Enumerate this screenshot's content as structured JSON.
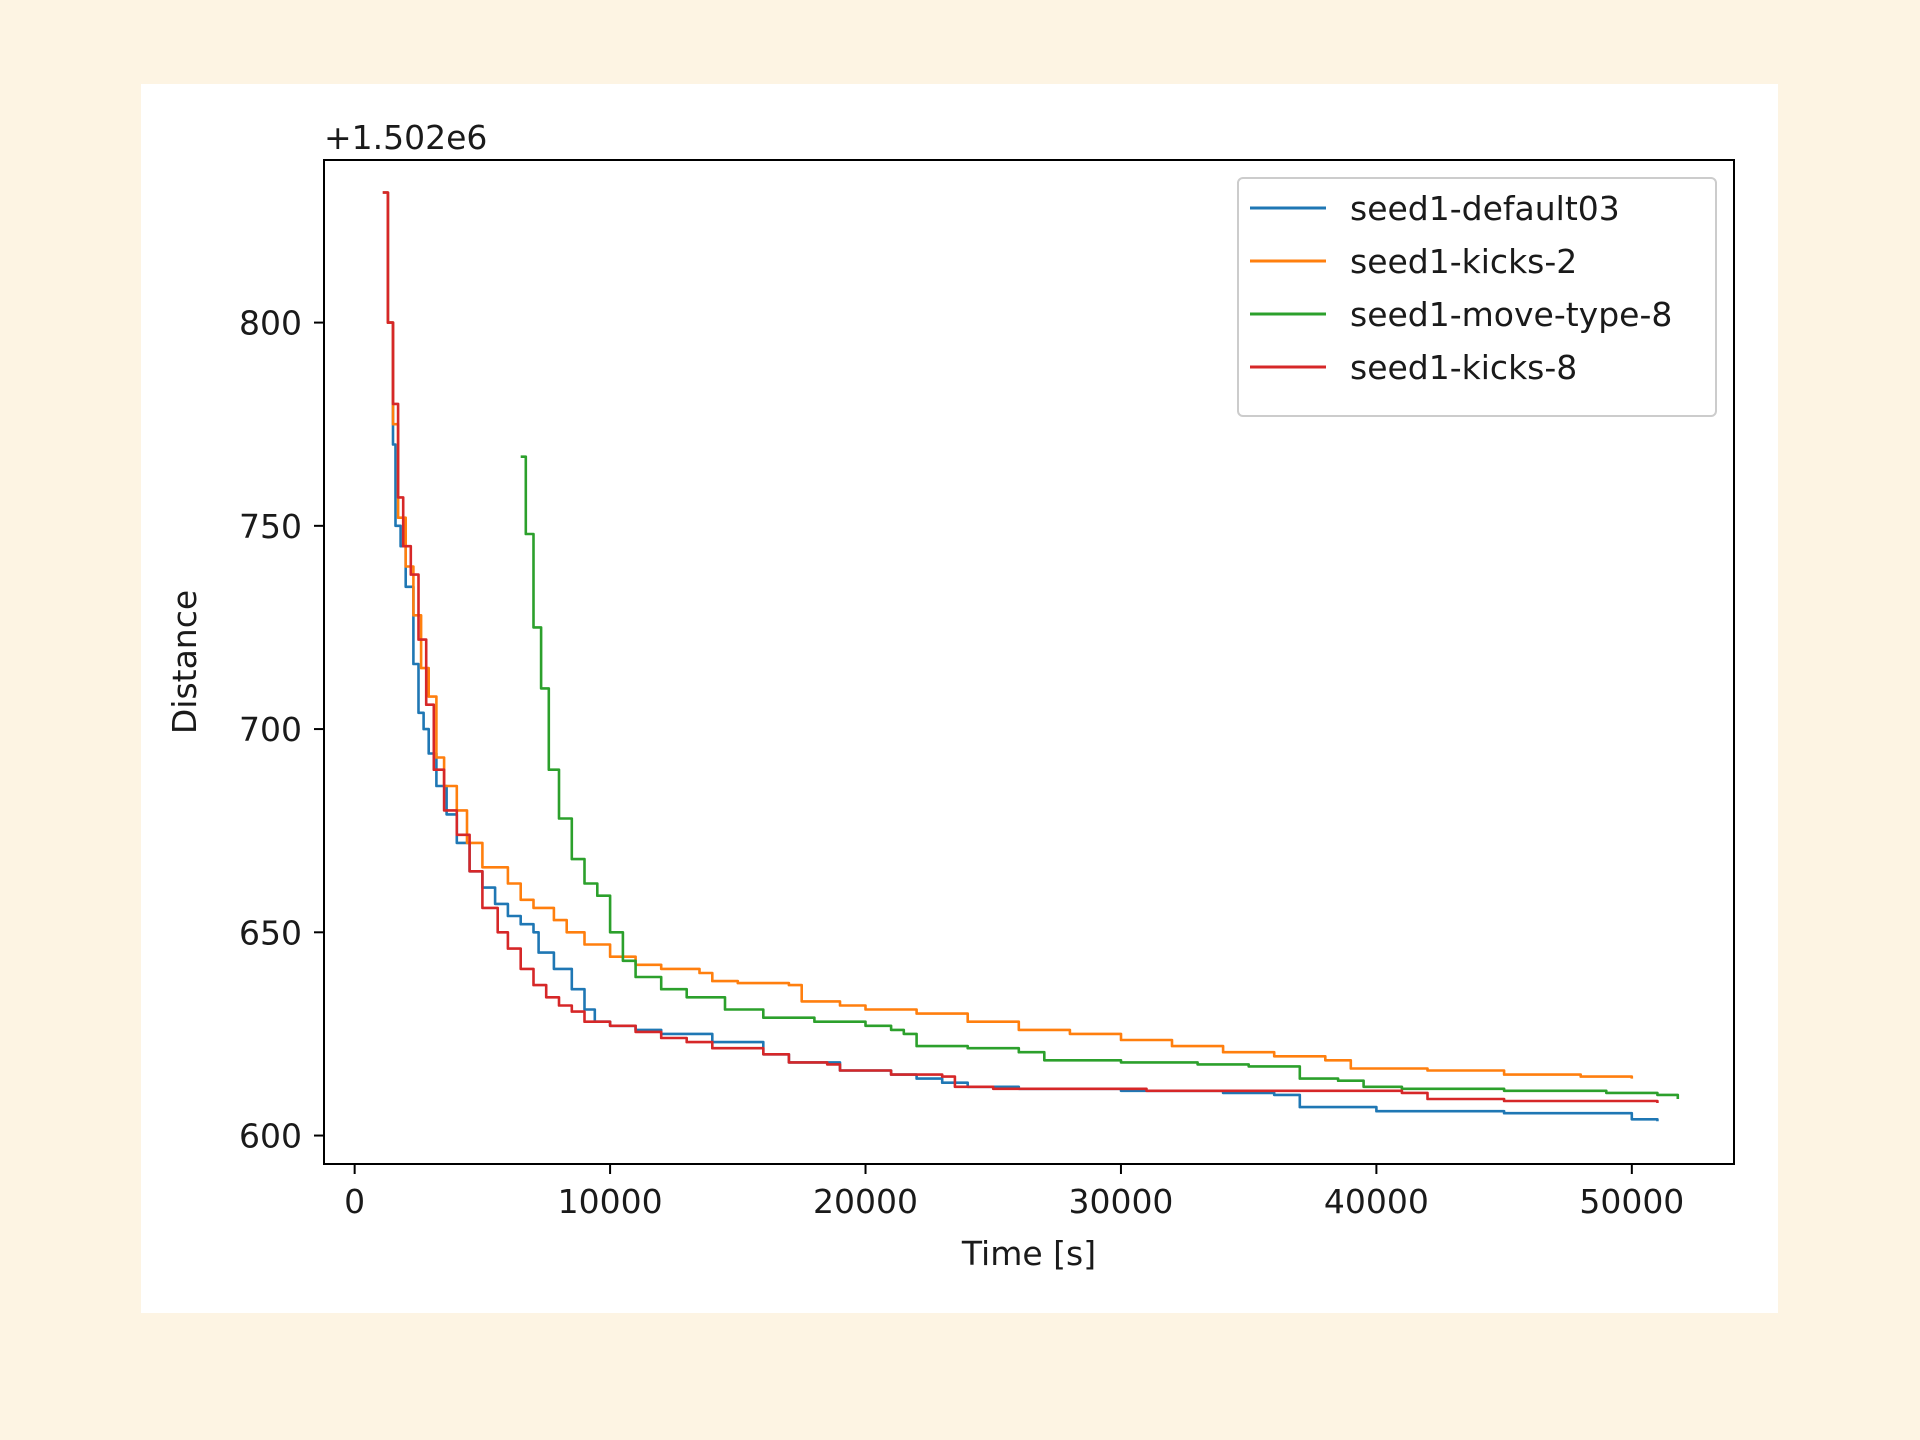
{
  "chart_data": {
    "type": "line",
    "offset_label": "+1.502e6",
    "xlabel": "Time [s]",
    "ylabel": "Distance",
    "xlim": [
      -1200,
      54000
    ],
    "ylim": [
      593,
      840
    ],
    "xticks": [
      0,
      10000,
      20000,
      30000,
      40000,
      50000
    ],
    "xtick_labels": [
      "0",
      "10000",
      "20000",
      "30000",
      "40000",
      "50000"
    ],
    "yticks": [
      600,
      650,
      700,
      750,
      800
    ],
    "ytick_labels": [
      "600",
      "650",
      "700",
      "750",
      "800"
    ],
    "grid": false,
    "legend_position": "top-right",
    "series": [
      {
        "name": "seed1-default03",
        "color": "#1f77b4",
        "points": [
          [
            1100,
            832
          ],
          [
            1300,
            800
          ],
          [
            1500,
            770
          ],
          [
            1600,
            750
          ],
          [
            1800,
            745
          ],
          [
            2000,
            735
          ],
          [
            2300,
            716
          ],
          [
            2500,
            704
          ],
          [
            2700,
            700
          ],
          [
            2900,
            694
          ],
          [
            3200,
            686
          ],
          [
            3600,
            679
          ],
          [
            4000,
            672
          ],
          [
            4500,
            665
          ],
          [
            5000,
            661
          ],
          [
            5500,
            657
          ],
          [
            6000,
            654
          ],
          [
            6500,
            652
          ],
          [
            7000,
            650
          ],
          [
            7200,
            645
          ],
          [
            7800,
            641
          ],
          [
            8500,
            636
          ],
          [
            9000,
            631
          ],
          [
            9400,
            628
          ],
          [
            10000,
            627
          ],
          [
            11000,
            626
          ],
          [
            12000,
            625
          ],
          [
            14000,
            623
          ],
          [
            16000,
            620
          ],
          [
            17000,
            618
          ],
          [
            19000,
            616
          ],
          [
            21000,
            615
          ],
          [
            22000,
            614
          ],
          [
            23000,
            613
          ],
          [
            24000,
            612
          ],
          [
            26000,
            611.5
          ],
          [
            30000,
            611
          ],
          [
            34000,
            610.5
          ],
          [
            36000,
            610
          ],
          [
            37000,
            607
          ],
          [
            40000,
            606
          ],
          [
            45000,
            605.5
          ],
          [
            49000,
            605.5
          ],
          [
            50000,
            604
          ],
          [
            51000,
            603.5
          ]
        ]
      },
      {
        "name": "seed1-kicks-2",
        "color": "#ff7f0e",
        "points": [
          [
            1100,
            832
          ],
          [
            1300,
            800
          ],
          [
            1500,
            775
          ],
          [
            1700,
            752
          ],
          [
            2000,
            740
          ],
          [
            2300,
            728
          ],
          [
            2600,
            715
          ],
          [
            2900,
            708
          ],
          [
            3200,
            693
          ],
          [
            3500,
            686
          ],
          [
            4000,
            680
          ],
          [
            4400,
            672
          ],
          [
            5000,
            666
          ],
          [
            6000,
            662
          ],
          [
            6500,
            658
          ],
          [
            7000,
            656
          ],
          [
            7800,
            653
          ],
          [
            8300,
            650
          ],
          [
            9000,
            647
          ],
          [
            10000,
            644
          ],
          [
            11000,
            642
          ],
          [
            12000,
            641
          ],
          [
            13500,
            640
          ],
          [
            14000,
            638
          ],
          [
            15000,
            637.5
          ],
          [
            17000,
            637
          ],
          [
            17500,
            633
          ],
          [
            19000,
            632
          ],
          [
            20000,
            631
          ],
          [
            22000,
            630
          ],
          [
            24000,
            628
          ],
          [
            26000,
            626
          ],
          [
            28000,
            625
          ],
          [
            30000,
            623.5
          ],
          [
            32000,
            622
          ],
          [
            34000,
            620.5
          ],
          [
            36000,
            619.5
          ],
          [
            38000,
            618.5
          ],
          [
            39000,
            616.5
          ],
          [
            42000,
            616
          ],
          [
            45000,
            615
          ],
          [
            48000,
            614.5
          ],
          [
            50000,
            614
          ]
        ]
      },
      {
        "name": "seed1-move-type-8",
        "color": "#2ca02c",
        "points": [
          [
            6500,
            767
          ],
          [
            6700,
            748
          ],
          [
            7000,
            725
          ],
          [
            7300,
            710
          ],
          [
            7600,
            690
          ],
          [
            8000,
            678
          ],
          [
            8500,
            668
          ],
          [
            9000,
            662
          ],
          [
            9500,
            659
          ],
          [
            10000,
            650
          ],
          [
            10500,
            643
          ],
          [
            11000,
            639
          ],
          [
            12000,
            636
          ],
          [
            13000,
            634
          ],
          [
            14500,
            631
          ],
          [
            16000,
            629
          ],
          [
            18000,
            628
          ],
          [
            20000,
            627
          ],
          [
            21000,
            626
          ],
          [
            21500,
            625
          ],
          [
            22000,
            622
          ],
          [
            24000,
            621.5
          ],
          [
            26000,
            620.5
          ],
          [
            27000,
            618.5
          ],
          [
            30000,
            618
          ],
          [
            33000,
            617.5
          ],
          [
            35000,
            617
          ],
          [
            37000,
            614
          ],
          [
            38500,
            613.5
          ],
          [
            39500,
            612
          ],
          [
            41000,
            611.5
          ],
          [
            45000,
            611
          ],
          [
            49000,
            610.5
          ],
          [
            51000,
            610
          ],
          [
            51800,
            609
          ]
        ]
      },
      {
        "name": "seed1-kicks-8",
        "color": "#d62728",
        "points": [
          [
            1100,
            832
          ],
          [
            1300,
            800
          ],
          [
            1500,
            780
          ],
          [
            1700,
            757
          ],
          [
            1900,
            745
          ],
          [
            2200,
            738
          ],
          [
            2500,
            722
          ],
          [
            2800,
            706
          ],
          [
            3100,
            690
          ],
          [
            3500,
            680
          ],
          [
            4000,
            674
          ],
          [
            4500,
            665
          ],
          [
            5000,
            656
          ],
          [
            5600,
            650
          ],
          [
            6000,
            646
          ],
          [
            6500,
            641
          ],
          [
            7000,
            637
          ],
          [
            7500,
            634
          ],
          [
            8000,
            632
          ],
          [
            8500,
            630.5
          ],
          [
            9000,
            628
          ],
          [
            10000,
            627
          ],
          [
            11000,
            625.5
          ],
          [
            12000,
            624
          ],
          [
            13000,
            623
          ],
          [
            14000,
            621.5
          ],
          [
            16000,
            620
          ],
          [
            17000,
            618
          ],
          [
            18500,
            617.5
          ],
          [
            19000,
            616
          ],
          [
            21000,
            615
          ],
          [
            23000,
            614.5
          ],
          [
            23500,
            612
          ],
          [
            25000,
            611.5
          ],
          [
            28000,
            611.5
          ],
          [
            31000,
            611
          ],
          [
            35000,
            611
          ],
          [
            40000,
            611
          ],
          [
            41000,
            610.5
          ],
          [
            42000,
            609
          ],
          [
            45000,
            608.5
          ],
          [
            49000,
            608.5
          ],
          [
            51000,
            608
          ]
        ]
      }
    ]
  }
}
